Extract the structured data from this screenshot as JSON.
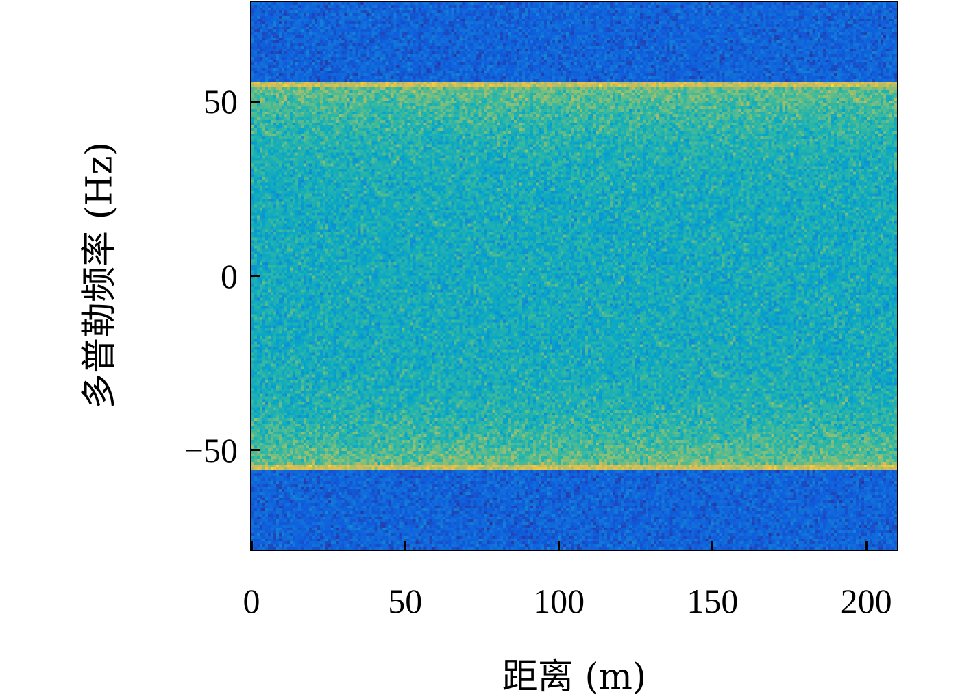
{
  "chart_data": {
    "type": "heatmap",
    "title": "",
    "xlabel": "距离 (m)",
    "ylabel": "多普勒频率 (Hz)",
    "xlim": [
      0,
      210
    ],
    "ylim": [
      -78.5,
      78.5
    ],
    "x_ticks": [
      0,
      50,
      100,
      150,
      200
    ],
    "x_tick_labels": [
      "0",
      "50",
      "100",
      "150",
      "200"
    ],
    "y_ticks": [
      50,
      0,
      -50
    ],
    "y_tick_labels": [
      "50",
      "0",
      "−50"
    ],
    "colormap": "parula",
    "grid": false,
    "colorbar": false,
    "band_doppler_hz": [
      -55,
      55
    ],
    "level_outside_band": 0.15,
    "level_band_center": 0.42,
    "level_band_edge": 0.6,
    "level_edge_line": 0.75,
    "colors": [
      "#352a87",
      "#0f5cdd",
      "#1481d6",
      "#06a4ca",
      "#2eb7a4",
      "#87bf77",
      "#d1bb59",
      "#fec832",
      "#f9fb0e"
    ]
  }
}
